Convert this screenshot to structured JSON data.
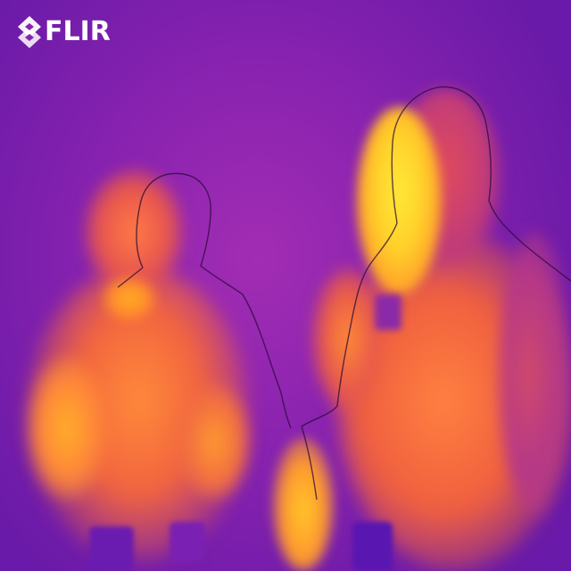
{
  "image": {
    "type": "thermal-camera-photo",
    "palette": "iron",
    "colors": {
      "cold": "#6a1aa8",
      "mid": "#f2653f",
      "hot": "#ffe838"
    }
  },
  "logo": {
    "text": "FLIR",
    "icon": "flir-diamond-logo-icon"
  }
}
